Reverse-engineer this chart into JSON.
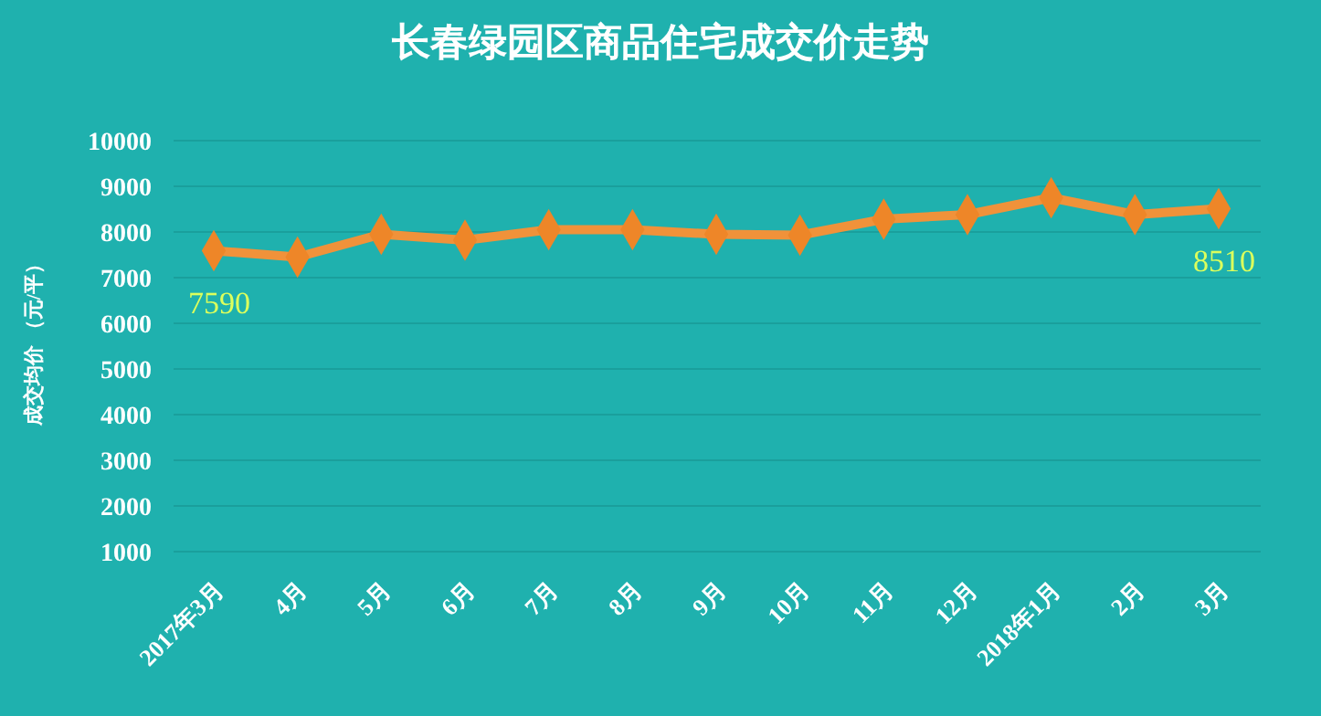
{
  "chart_data": {
    "type": "line",
    "title": "长春绿园区商品住宅成交价走势",
    "ylabel": "成交均价 （元/平）",
    "categories": [
      "2017年3月",
      "4月",
      "5月",
      "6月",
      "7月",
      "8月",
      "9月",
      "10月",
      "11月",
      "12月",
      "2018年1月",
      "2月",
      "3月"
    ],
    "series": [
      {
        "color": "#f0923a",
        "values": [
          7590,
          7450,
          7950,
          7820,
          8050,
          8050,
          7950,
          7930,
          8280,
          8380,
          8750,
          8380,
          8510
        ],
        "value_labels": [
          "7590",
          null,
          null,
          null,
          null,
          null,
          null,
          null,
          null,
          null,
          null,
          null,
          "8510"
        ]
      }
    ],
    "ylim": [
      1000,
      10000
    ],
    "yticks": [
      1000,
      2000,
      3000,
      4000,
      5000,
      6000,
      7000,
      8000,
      9000,
      10000
    ],
    "grid": "y",
    "marker": "diamond",
    "line_style": "solid"
  }
}
